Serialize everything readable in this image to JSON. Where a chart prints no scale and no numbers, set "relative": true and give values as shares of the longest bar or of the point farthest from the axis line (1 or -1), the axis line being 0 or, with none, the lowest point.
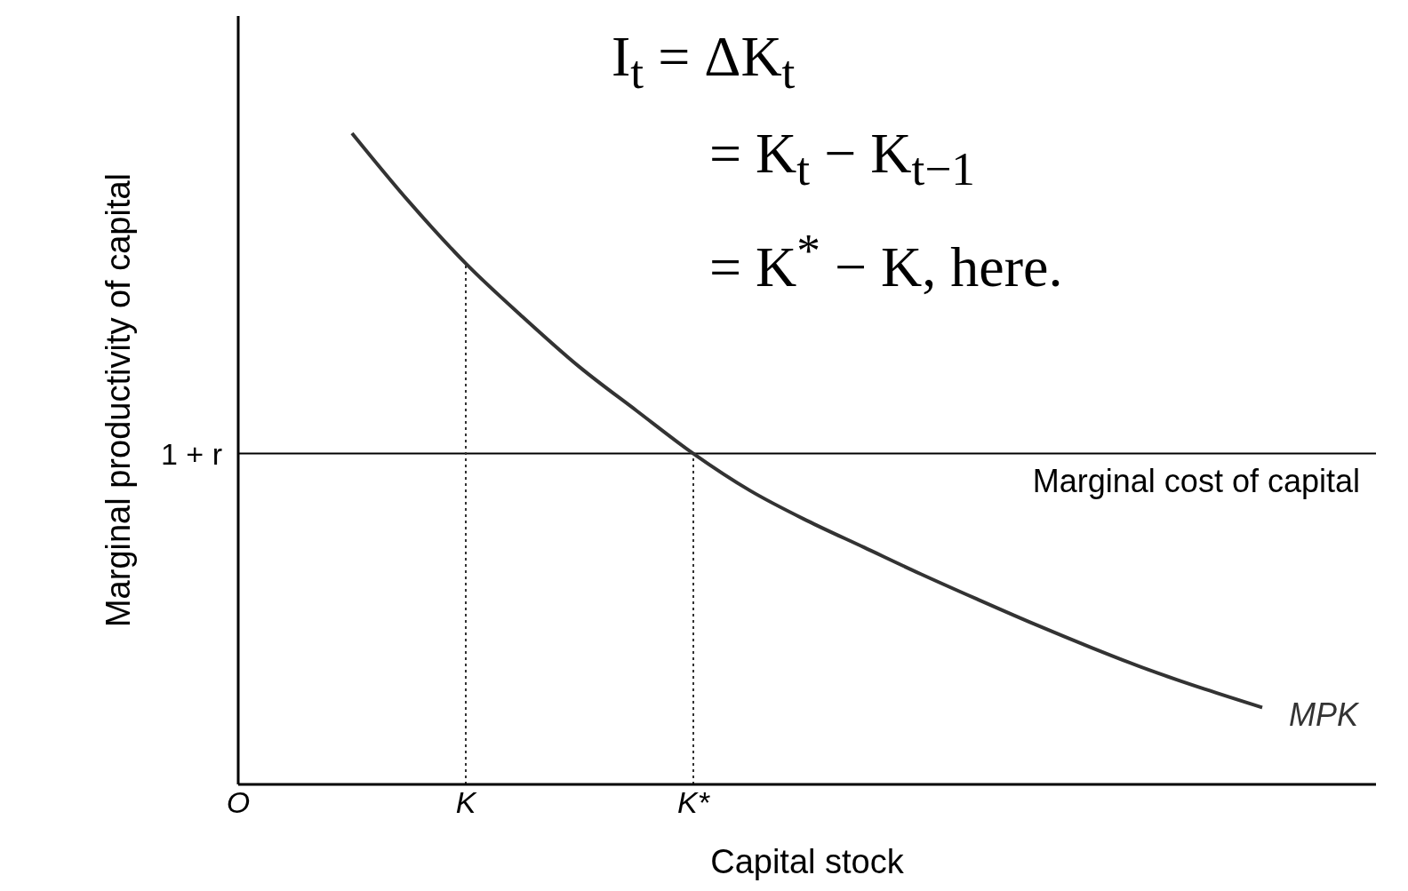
{
  "chart_data": {
    "type": "line",
    "relative": true,
    "xlabel": "Capital stock",
    "ylabel": "Marginal productivity of capital",
    "categories": [
      "O",
      null,
      null,
      null,
      "K",
      null,
      null,
      null,
      "K*",
      null,
      null,
      null,
      null,
      null,
      null,
      null,
      null,
      null,
      null,
      null,
      null
    ],
    "marker": "none",
    "series": [
      {
        "name": "MPK",
        "color": "#333333",
        "line_style": "solid",
        "values": [
          null,
          null,
          1,
          0.895,
          0.8,
          0.718,
          0.641,
          0.574,
          0.508,
          0.451,
          0.405,
          0.364,
          0.323,
          0.284,
          0.246,
          0.21,
          0.176,
          0.146,
          0.118,
          null,
          null
        ]
      }
    ],
    "ref_lines": [
      {
        "axis": "y",
        "value": 0.508,
        "label": "Marginal cost of capital",
        "color": "#000000",
        "line_style": "solid"
      },
      {
        "axis": "x",
        "value": "K",
        "color": "#333333",
        "line_style": "dotted"
      },
      {
        "axis": "x",
        "value": "K*",
        "color": "#333333",
        "line_style": "dotted"
      }
    ],
    "annotations": [
      "1 + r",
      "I$_{t}$ = ΔK$_{t}$",
      "= K$_{t}$ − K$_{t−1}$",
      "= K$^{*}$ − K, here."
    ]
  }
}
